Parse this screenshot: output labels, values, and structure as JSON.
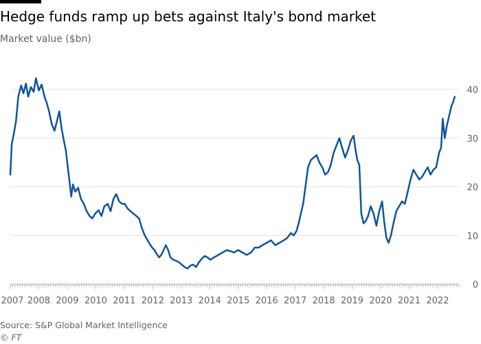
{
  "title": "Hedge funds ramp up bets against Italy's bond market",
  "subtitle": "Market value ($bn)",
  "source": "Source: S&P Global Market Intelligence",
  "copyright": "© FT",
  "colors": {
    "line": "#0f5499",
    "grid": "#e6e1dc",
    "axis": "#b3aca6",
    "text": "#66605c"
  },
  "chart_data": {
    "type": "line",
    "title": "Hedge funds ramp up bets against Italy's bond market",
    "ylabel": "Market value ($bn)",
    "xlabel": "",
    "ylim": [
      0,
      40
    ],
    "xlim": [
      2007,
      2022.75
    ],
    "yticks": [
      0,
      10,
      20,
      30,
      40
    ],
    "xticks": [
      "2007",
      "2008",
      "2009",
      "2010",
      "2011",
      "2012",
      "2013",
      "2014",
      "2015",
      "2016",
      "2017",
      "2018",
      "2019",
      "2020",
      "2021",
      "2022"
    ],
    "grid": true,
    "legend": "none",
    "series": [
      {
        "x": [
          2007.0,
          2007.05,
          2007.12,
          2007.2,
          2007.28,
          2007.38,
          2007.46,
          2007.55,
          2007.63,
          2007.72,
          2007.82,
          2007.9,
          2008.0,
          2008.1,
          2008.2,
          2008.28,
          2008.36,
          2008.45,
          2008.55,
          2008.65,
          2008.72,
          2008.8,
          2008.88,
          2008.95,
          2009.02,
          2009.08,
          2009.14,
          2009.2,
          2009.28,
          2009.38,
          2009.48,
          2009.58,
          2009.68,
          2009.78,
          2009.88,
          2009.98,
          2010.1,
          2010.2,
          2010.3,
          2010.42,
          2010.52,
          2010.62,
          2010.72,
          2010.82,
          2010.92,
          2011.02,
          2011.12,
          2011.22,
          2011.32,
          2011.42,
          2011.52,
          2011.62,
          2011.72,
          2011.82,
          2011.9,
          2011.98,
          2012.06,
          2012.14,
          2012.22,
          2012.3,
          2012.38,
          2012.46,
          2012.54,
          2012.62,
          2012.72,
          2012.82,
          2012.92,
          2013.02,
          2013.12,
          2013.22,
          2013.32,
          2013.42,
          2013.52,
          2013.62,
          2013.72,
          2013.82,
          2013.92,
          2014.02,
          2014.15,
          2014.3,
          2014.45,
          2014.6,
          2014.72,
          2014.85,
          2015.0,
          2015.15,
          2015.3,
          2015.45,
          2015.58,
          2015.72,
          2015.85,
          2016.0,
          2016.15,
          2016.3,
          2016.45,
          2016.6,
          2016.72,
          2016.85,
          2016.95,
          2017.05,
          2017.12,
          2017.2,
          2017.28,
          2017.36,
          2017.45,
          2017.55,
          2017.65,
          2017.75,
          2017.85,
          2017.95,
          2018.05,
          2018.15,
          2018.25,
          2018.35,
          2018.45,
          2018.55,
          2018.65,
          2018.75,
          2018.85,
          2018.95,
          2019.05,
          2019.12,
          2019.18,
          2019.25,
          2019.32,
          2019.4,
          2019.48,
          2019.56,
          2019.65,
          2019.75,
          2019.85,
          2019.95,
          2020.05,
          2020.12,
          2020.2,
          2020.28,
          2020.36,
          2020.45,
          2020.55,
          2020.65,
          2020.75,
          2020.85,
          2020.95,
          2021.05,
          2021.15,
          2021.25,
          2021.35,
          2021.45,
          2021.55,
          2021.65,
          2021.75,
          2021.85,
          2021.95,
          2022.05,
          2022.12,
          2022.18,
          2022.25,
          2022.32,
          2022.4,
          2022.48,
          2022.55,
          2022.6
        ],
        "values": [
          22.5,
          28.8,
          30.8,
          33.5,
          38.5,
          40.8,
          39.2,
          41.2,
          38.5,
          40.5,
          39.5,
          42.3,
          39.8,
          41.0,
          38.5,
          37.2,
          35.5,
          33.0,
          31.5,
          33.8,
          35.5,
          32.0,
          29.5,
          27.5,
          24.0,
          21.0,
          18.0,
          20.5,
          19.0,
          19.8,
          17.5,
          16.5,
          15.0,
          14.0,
          13.5,
          14.5,
          15.2,
          14.0,
          16.0,
          16.5,
          15.0,
          17.5,
          18.5,
          17.0,
          16.5,
          16.5,
          15.5,
          15.0,
          14.5,
          14.0,
          13.5,
          11.5,
          10.0,
          9.0,
          8.2,
          7.5,
          7.0,
          6.2,
          5.5,
          6.0,
          7.0,
          8.0,
          7.0,
          5.5,
          5.0,
          4.8,
          4.5,
          4.0,
          3.5,
          3.2,
          3.8,
          4.0,
          3.5,
          4.5,
          5.2,
          5.8,
          5.5,
          5.0,
          5.5,
          6.0,
          6.5,
          7.0,
          6.8,
          6.5,
          7.0,
          6.5,
          6.0,
          6.5,
          7.5,
          7.5,
          8.0,
          8.5,
          9.0,
          8.0,
          8.5,
          9.0,
          9.5,
          10.5,
          10.0,
          11.0,
          12.5,
          14.5,
          16.5,
          20.0,
          24.0,
          25.5,
          26.0,
          26.5,
          25.0,
          24.0,
          22.5,
          23.0,
          24.5,
          27.0,
          28.5,
          30.0,
          28.0,
          26.0,
          27.5,
          29.5,
          30.5,
          27.5,
          25.5,
          24.5,
          14.5,
          12.5,
          13.0,
          14.0,
          16.0,
          14.5,
          12.0,
          15.0,
          17.0,
          13.0,
          9.5,
          8.5,
          10.0,
          12.5,
          15.0,
          16.0,
          17.0,
          16.5,
          19.0,
          21.5,
          23.5,
          22.5,
          21.5,
          22.0,
          23.0,
          24.0,
          22.5,
          23.5,
          24.0,
          27.0,
          28.0,
          34.0,
          30.0,
          32.5,
          34.5,
          36.5,
          37.5,
          38.5
        ]
      }
    ]
  }
}
